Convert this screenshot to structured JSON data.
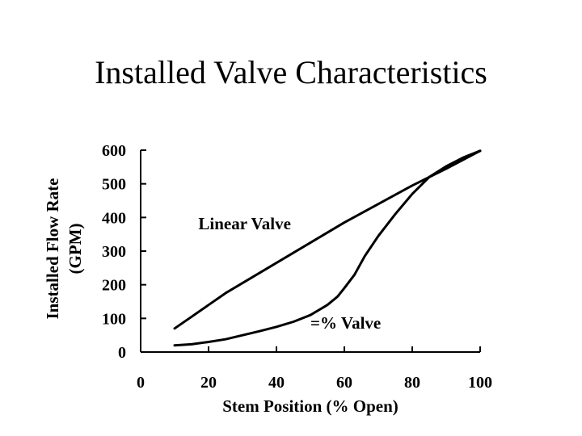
{
  "slide": {
    "title": "Installed Valve Characteristics"
  },
  "chart_data": {
    "type": "line",
    "title": "",
    "xlabel": "Stem Position (% Open)",
    "ylabel_line1": "Installed Flow Rate",
    "ylabel_line2": "(GPM)",
    "xlim": [
      0,
      100
    ],
    "ylim": [
      0,
      600
    ],
    "xticks": [
      0,
      20,
      40,
      60,
      80,
      100
    ],
    "yticks": [
      0,
      100,
      200,
      300,
      400,
      500,
      600
    ],
    "grid": false,
    "series": [
      {
        "name": "Linear Valve",
        "x": [
          10,
          15,
          20,
          25,
          30,
          40,
          50,
          60,
          70,
          80,
          90,
          100
        ],
        "y": [
          70,
          105,
          140,
          175,
          205,
          265,
          325,
          385,
          440,
          495,
          545,
          598
        ]
      },
      {
        "name": "=% Valve",
        "x": [
          10,
          15,
          20,
          25,
          30,
          35,
          40,
          45,
          50,
          55,
          58,
          60,
          63,
          66,
          70,
          75,
          80,
          85,
          90,
          95,
          100
        ],
        "y": [
          20,
          23,
          30,
          38,
          50,
          62,
          75,
          90,
          110,
          140,
          165,
          190,
          230,
          285,
          345,
          410,
          470,
          520,
          552,
          578,
          598
        ]
      }
    ],
    "annotations": [
      {
        "text": "Linear Valve",
        "x": 17,
        "y": 365
      },
      {
        "text": "=% Valve",
        "x": 50,
        "y": 70
      }
    ]
  }
}
